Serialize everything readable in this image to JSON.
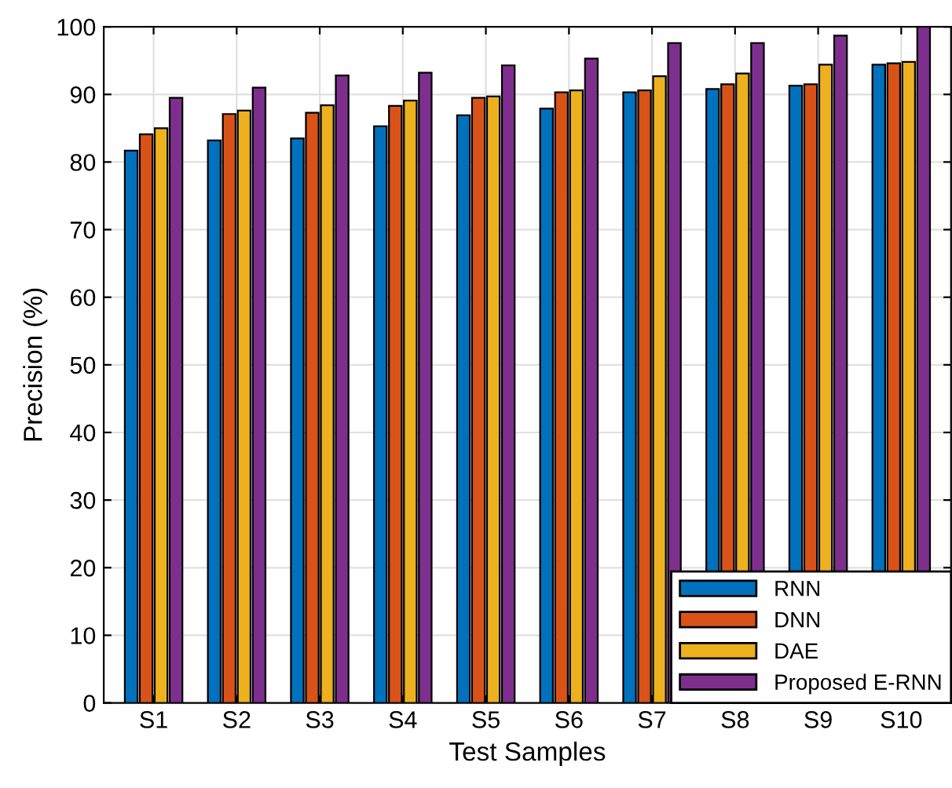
{
  "chart_data": {
    "type": "bar",
    "xlabel": "Test Samples",
    "ylabel": "Precision (%)",
    "categories": [
      "S1",
      "S2",
      "S3",
      "S4",
      "S5",
      "S6",
      "S7",
      "S8",
      "S9",
      "S10"
    ],
    "series": [
      {
        "name": "RNN",
        "color": "#0072bd",
        "values": [
          81.7,
          83.2,
          83.5,
          85.3,
          86.9,
          87.9,
          90.3,
          90.8,
          91.3,
          94.4
        ]
      },
      {
        "name": "DNN",
        "color": "#d95319",
        "values": [
          84.1,
          87.1,
          87.3,
          88.3,
          89.5,
          90.3,
          90.6,
          91.5,
          91.5,
          94.6
        ]
      },
      {
        "name": "DAE",
        "color": "#edb120",
        "values": [
          85.0,
          87.6,
          88.4,
          89.1,
          89.7,
          90.6,
          92.7,
          93.1,
          94.4,
          94.8
        ]
      },
      {
        "name": "Proposed E-RNN",
        "color": "#7e2f8e",
        "values": [
          89.5,
          91.0,
          92.8,
          93.2,
          94.3,
          95.3,
          97.6,
          97.6,
          98.7,
          100
        ]
      }
    ],
    "ylim": [
      0,
      100
    ],
    "yticks": [
      0,
      10,
      20,
      30,
      40,
      50,
      60,
      70,
      80,
      90,
      100
    ],
    "grid": true,
    "legend": "bottom right"
  }
}
